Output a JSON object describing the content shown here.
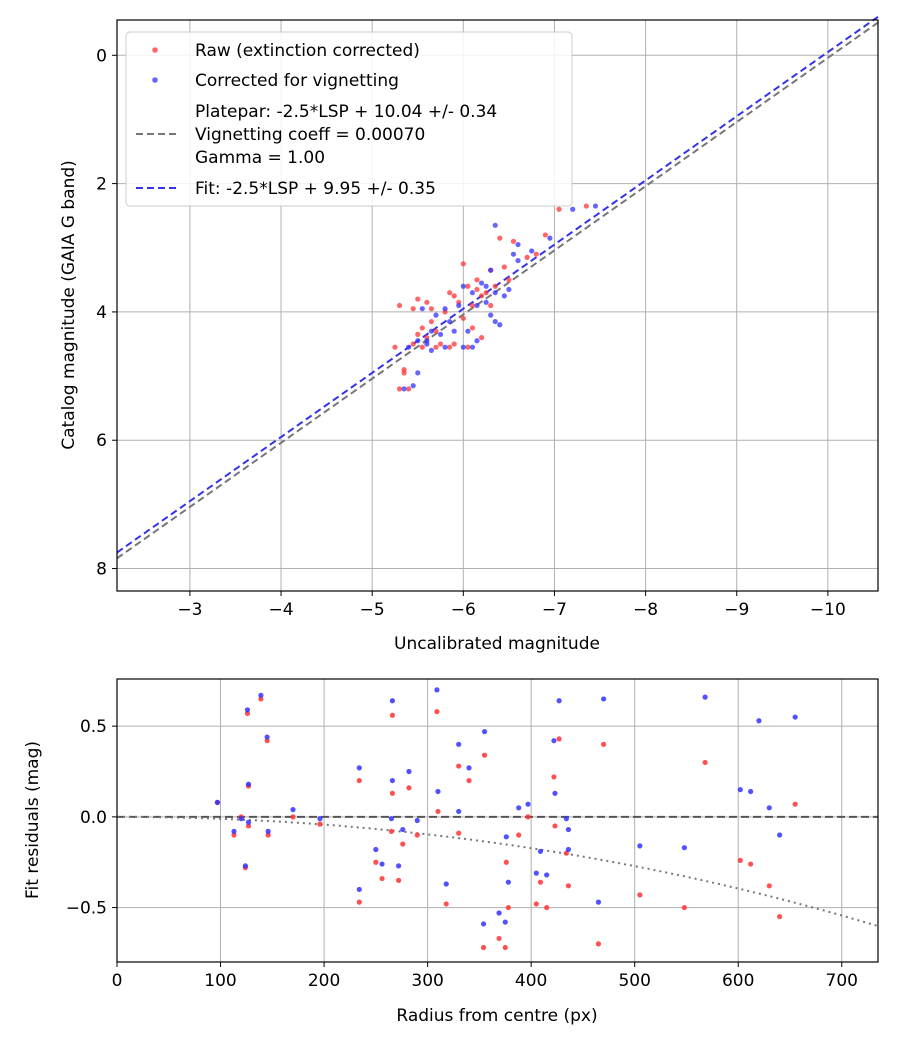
{
  "chart_data": [
    {
      "type": "scatter",
      "xlabel": "Uncalibrated magnitude",
      "ylabel": "Catalog magnitude (GAIA G band)",
      "xlim": [
        -2.2,
        -10.55
      ],
      "ylim": [
        8.35,
        -0.55
      ],
      "x_ticks": [
        -3,
        -4,
        -5,
        -6,
        -7,
        -8,
        -9,
        -10
      ],
      "x_tick_labels": [
        "−3",
        "−4",
        "−5",
        "−6",
        "−7",
        "−8",
        "−9",
        "−10"
      ],
      "y_ticks": [
        0,
        2,
        4,
        6,
        8
      ],
      "y_tick_labels": [
        "0",
        "2",
        "4",
        "6",
        "8"
      ],
      "grid": true,
      "legend": {
        "location": "upper-left",
        "entries": [
          {
            "label": "Raw (extinction corrected)",
            "marker": "dot",
            "color": "#ff3333"
          },
          {
            "label": "Corrected for vignetting",
            "marker": "dot",
            "color": "#3333ff"
          },
          {
            "label": "Platepar: -2.5*LSP + 10.04 +/- 0.34",
            "marker": "dashed-line",
            "color": "#777777"
          },
          {
            "label": "Vignetting coeff = 0.00070",
            "marker": "none"
          },
          {
            "label": "Gamma = 1.00",
            "marker": "none"
          },
          {
            "label": "Fit: -2.5*LSP + 9.95 +/- 0.35",
            "marker": "dashed-line",
            "color": "#3333ee"
          }
        ]
      },
      "lines": [
        {
          "name": "Platepar",
          "slope": 1.0,
          "intercept": 10.04,
          "style": "dashed",
          "color": "#777777"
        },
        {
          "name": "Fit",
          "slope": 1.0,
          "intercept": 9.95,
          "style": "dashed",
          "color": "#3333ee"
        }
      ],
      "series": [
        {
          "name": "Raw (extinction corrected)",
          "color": "#ff3333",
          "points": [
            [
              -5.3,
              5.2
            ],
            [
              -5.35,
              4.95
            ],
            [
              -5.4,
              5.2
            ],
            [
              -5.25,
              4.55
            ],
            [
              -5.45,
              4.5
            ],
            [
              -5.5,
              4.35
            ],
            [
              -5.55,
              4.55
            ],
            [
              -5.6,
              4.4
            ],
            [
              -5.45,
              3.95
            ],
            [
              -5.5,
              3.8
            ],
            [
              -5.6,
              3.85
            ],
            [
              -5.65,
              4.15
            ],
            [
              -5.7,
              4.3
            ],
            [
              -5.75,
              4.5
            ],
            [
              -5.8,
              4.0
            ],
            [
              -5.85,
              3.7
            ],
            [
              -5.9,
              3.75
            ],
            [
              -5.95,
              3.85
            ],
            [
              -5.9,
              4.5
            ],
            [
              -6.0,
              4.1
            ],
            [
              -6.0,
              3.25
            ],
            [
              -6.05,
              3.6
            ],
            [
              -6.1,
              3.9
            ],
            [
              -6.1,
              4.25
            ],
            [
              -6.15,
              3.5
            ],
            [
              -6.2,
              3.75
            ],
            [
              -6.25,
              3.7
            ],
            [
              -6.3,
              3.35
            ],
            [
              -6.35,
              3.6
            ],
            [
              -6.4,
              2.85
            ],
            [
              -6.45,
              3.3
            ],
            [
              -6.5,
              3.5
            ],
            [
              -6.55,
              2.9
            ],
            [
              -6.7,
              3.15
            ],
            [
              -6.8,
              3.1
            ],
            [
              -6.9,
              2.8
            ],
            [
              -7.05,
              2.4
            ],
            [
              -7.35,
              2.35
            ],
            [
              -5.35,
              4.9
            ],
            [
              -5.55,
              4.25
            ],
            [
              -5.7,
              4.55
            ],
            [
              -5.85,
              4.55
            ],
            [
              -6.05,
              4.55
            ],
            [
              -6.2,
              4.4
            ],
            [
              -6.15,
              3.65
            ],
            [
              -6.3,
              3.9
            ],
            [
              -5.65,
              3.95
            ],
            [
              -5.3,
              3.9
            ]
          ]
        },
        {
          "name": "Corrected for vignetting",
          "color": "#3333ff",
          "points": [
            [
              -5.35,
              5.2
            ],
            [
              -5.45,
              5.15
            ],
            [
              -5.5,
              4.95
            ],
            [
              -5.4,
              4.55
            ],
            [
              -5.5,
              4.45
            ],
            [
              -5.55,
              3.95
            ],
            [
              -5.6,
              4.5
            ],
            [
              -5.65,
              4.3
            ],
            [
              -5.7,
              4.05
            ],
            [
              -5.75,
              4.35
            ],
            [
              -5.8,
              4.55
            ],
            [
              -5.85,
              4.15
            ],
            [
              -5.9,
              4.3
            ],
            [
              -5.95,
              3.9
            ],
            [
              -6.0,
              3.6
            ],
            [
              -6.05,
              4.3
            ],
            [
              -6.1,
              3.7
            ],
            [
              -6.15,
              3.9
            ],
            [
              -6.2,
              3.55
            ],
            [
              -6.25,
              3.85
            ],
            [
              -6.3,
              3.35
            ],
            [
              -6.35,
              4.15
            ],
            [
              -6.4,
              4.2
            ],
            [
              -6.45,
              3.75
            ],
            [
              -6.55,
              3.1
            ],
            [
              -6.6,
              2.95
            ],
            [
              -6.75,
              3.05
            ],
            [
              -6.95,
              2.85
            ],
            [
              -7.2,
              2.4
            ],
            [
              -7.45,
              2.35
            ],
            [
              -6.0,
              4.55
            ],
            [
              -6.1,
              4.55
            ],
            [
              -6.3,
              4.05
            ],
            [
              -5.8,
              3.95
            ],
            [
              -5.6,
              4.45
            ],
            [
              -6.25,
              3.6
            ],
            [
              -6.5,
              3.65
            ],
            [
              -6.35,
              3.7
            ],
            [
              -6.15,
              4.45
            ],
            [
              -5.65,
              4.6
            ],
            [
              -6.6,
              3.2
            ],
            [
              -6.35,
              2.65
            ]
          ]
        }
      ]
    },
    {
      "type": "scatter",
      "xlabel": "Radius from centre (px)",
      "ylabel": "Fit residuals (mag)",
      "xlim": [
        0,
        735
      ],
      "ylim": [
        -0.8,
        0.76
      ],
      "x_ticks": [
        0,
        100,
        200,
        300,
        400,
        500,
        600,
        700
      ],
      "x_tick_labels": [
        "0",
        "100",
        "200",
        "300",
        "400",
        "500",
        "600",
        "700"
      ],
      "y_ticks": [
        0.5,
        0.0,
        -0.5
      ],
      "y_tick_labels": [
        "0.5",
        "0.0",
        "−0.5"
      ],
      "grid": true,
      "reference_lines": [
        {
          "name": "zero",
          "y": 0.0,
          "style": "dashed",
          "color": "#555555"
        },
        {
          "name": "vignetting",
          "style": "dotted",
          "color": "#777777",
          "equation": "-2.5*log10(cos(0.0007*r)^4)",
          "sign": -1
        }
      ],
      "series": [
        {
          "name": "Raw (extinction corrected)",
          "color": "#ff3333",
          "points": [
            [
              97,
              0.08
            ],
            [
              113,
              -0.1
            ],
            [
              120,
              0.0
            ],
            [
              124,
              -0.28
            ],
            [
              126,
              0.57
            ],
            [
              127,
              0.17
            ],
            [
              127,
              -0.05
            ],
            [
              139,
              0.65
            ],
            [
              145,
              0.42
            ],
            [
              146,
              -0.1
            ],
            [
              170,
              0.0
            ],
            [
              196,
              -0.04
            ],
            [
              234,
              0.2
            ],
            [
              234,
              -0.47
            ],
            [
              250,
              -0.25
            ],
            [
              256,
              -0.34
            ],
            [
              266,
              0.56
            ],
            [
              265,
              -0.08
            ],
            [
              266,
              0.13
            ],
            [
              272,
              -0.35
            ],
            [
              276,
              -0.15
            ],
            [
              282,
              0.16
            ],
            [
              290,
              -0.1
            ],
            [
              309,
              0.58
            ],
            [
              310,
              0.03
            ],
            [
              318,
              -0.48
            ],
            [
              330,
              0.28
            ],
            [
              330,
              -0.09
            ],
            [
              340,
              0.2
            ],
            [
              354,
              -0.72
            ],
            [
              355,
              0.34
            ],
            [
              369,
              -0.67
            ],
            [
              375,
              -0.72
            ],
            [
              376,
              -0.25
            ],
            [
              378,
              -0.5
            ],
            [
              388,
              -0.1
            ],
            [
              397,
              0.0
            ],
            [
              405,
              -0.48
            ],
            [
              409,
              -0.36
            ],
            [
              415,
              -0.5
            ],
            [
              422,
              0.22
            ],
            [
              423,
              -0.05
            ],
            [
              427,
              0.43
            ],
            [
              434,
              -0.2
            ],
            [
              436,
              -0.38
            ],
            [
              465,
              -0.7
            ],
            [
              470,
              0.4
            ],
            [
              505,
              -0.43
            ],
            [
              548,
              -0.5
            ],
            [
              568,
              0.3
            ],
            [
              602,
              -0.24
            ],
            [
              612,
              -0.26
            ],
            [
              630,
              -0.38
            ],
            [
              640,
              -0.55
            ],
            [
              655,
              0.07
            ]
          ]
        },
        {
          "name": "Corrected for vignetting",
          "color": "#3333ff",
          "points": [
            [
              97,
              0.08
            ],
            [
              113,
              -0.08
            ],
            [
              120,
              -0.01
            ],
            [
              124,
              -0.27
            ],
            [
              126,
              0.59
            ],
            [
              127,
              0.18
            ],
            [
              127,
              -0.03
            ],
            [
              139,
              0.67
            ],
            [
              145,
              0.44
            ],
            [
              146,
              -0.08
            ],
            [
              170,
              0.04
            ],
            [
              196,
              -0.01
            ],
            [
              234,
              0.27
            ],
            [
              234,
              -0.4
            ],
            [
              250,
              -0.18
            ],
            [
              256,
              -0.26
            ],
            [
              266,
              0.64
            ],
            [
              265,
              -0.01
            ],
            [
              266,
              0.2
            ],
            [
              272,
              -0.27
            ],
            [
              276,
              -0.07
            ],
            [
              282,
              0.25
            ],
            [
              290,
              -0.02
            ],
            [
              309,
              0.7
            ],
            [
              310,
              0.14
            ],
            [
              318,
              -0.37
            ],
            [
              330,
              0.4
            ],
            [
              330,
              0.03
            ],
            [
              340,
              0.27
            ],
            [
              354,
              -0.59
            ],
            [
              355,
              0.47
            ],
            [
              369,
              -0.53
            ],
            [
              375,
              -0.58
            ],
            [
              376,
              -0.11
            ],
            [
              378,
              -0.36
            ],
            [
              388,
              0.05
            ],
            [
              397,
              0.07
            ],
            [
              405,
              -0.31
            ],
            [
              409,
              -0.19
            ],
            [
              415,
              -0.32
            ],
            [
              422,
              0.42
            ],
            [
              423,
              0.13
            ],
            [
              427,
              0.64
            ],
            [
              434,
              -0.01
            ],
            [
              436,
              -0.18
            ],
            [
              465,
              -0.47
            ],
            [
              470,
              0.65
            ],
            [
              505,
              -0.16
            ],
            [
              548,
              -0.17
            ],
            [
              568,
              0.66
            ],
            [
              602,
              0.15
            ],
            [
              612,
              0.14
            ],
            [
              630,
              0.05
            ],
            [
              640,
              -0.1
            ],
            [
              620,
              0.53
            ],
            [
              655,
              0.55
            ],
            [
              436,
              -0.07
            ]
          ]
        }
      ]
    }
  ]
}
